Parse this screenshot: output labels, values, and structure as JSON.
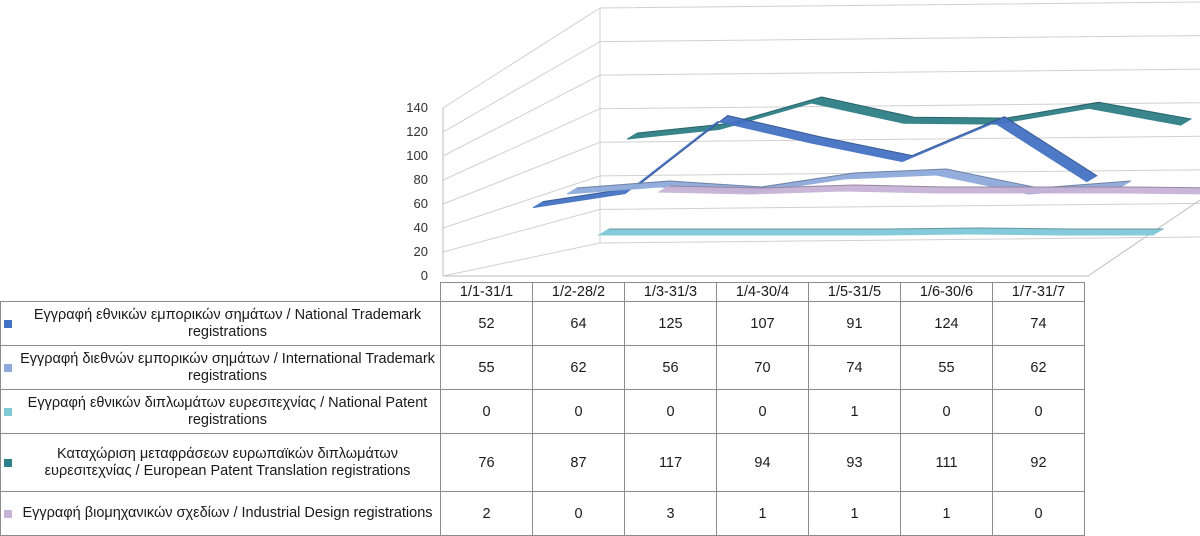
{
  "chart_data": {
    "type": "line",
    "three_d": true,
    "categories": [
      "1/1-31/1",
      "1/2-28/2",
      "1/3-31/3",
      "1/4-30/4",
      "1/5-31/5",
      "1/6-30/6",
      "1/7-31/7"
    ],
    "yticks": [
      0,
      20,
      40,
      60,
      80,
      100,
      120,
      140
    ],
    "ylim": [
      0,
      140
    ],
    "grid": true,
    "legend": "data-table",
    "series": [
      {
        "name": "Εγγραφή εθνικών εμπορικών σημάτων / National Trademark registrations",
        "color": "#4472c4",
        "values": [
          52,
          64,
          125,
          107,
          91,
          124,
          74
        ]
      },
      {
        "name": "Εγγραφή διεθνών εμπορικών σημάτων / International Trademark registrations",
        "color": "#8eaadb",
        "values": [
          55,
          62,
          56,
          70,
          74,
          55,
          62
        ]
      },
      {
        "name": "Εγγραφή εθνικών διπλωμάτων ευρεσιτεχνίας / National Patent registrations",
        "color": "#7fc8d6",
        "values": [
          0,
          0,
          0,
          0,
          1,
          0,
          0
        ]
      },
      {
        "name": "Καταχώριση μεταφράσεων ευρωπαϊκών διπλωμάτων ευρεσιτεχνίας / European Patent Translation registrations",
        "color": "#2e7f86",
        "values": [
          76,
          87,
          117,
          94,
          93,
          111,
          92
        ]
      },
      {
        "name": "Εγγραφή βιομηχανικών σχεδίων / Industrial Design registrations",
        "color": "#c7b3d6",
        "values": [
          2,
          0,
          3,
          1,
          1,
          1,
          0
        ]
      }
    ]
  }
}
